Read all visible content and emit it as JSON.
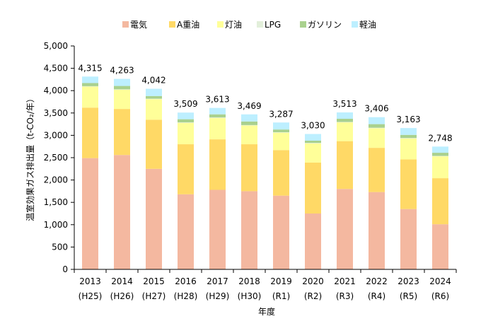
{
  "chart_data": {
    "type": "bar",
    "stacked": true,
    "title": "",
    "xlabel": "年度",
    "ylabel": "温室効果ガス排出量（t-CO₂/年）",
    "ylim": [
      0,
      5000
    ],
    "yticks": [
      0,
      500,
      1000,
      1500,
      2000,
      2500,
      3000,
      3500,
      4000,
      4500,
      5000
    ],
    "ytick_labels": [
      "0",
      "500",
      "1,000",
      "1,500",
      "2,000",
      "2,500",
      "3,000",
      "3,500",
      "4,000",
      "4,500",
      "5,000"
    ],
    "grid": false,
    "legend_position": "top",
    "categories": [
      "2013",
      "2014",
      "2015",
      "2016",
      "2017",
      "2018",
      "2019",
      "2020",
      "2021",
      "2022",
      "2023",
      "2024"
    ],
    "category_sublabels": [
      "(H25)",
      "(H26)",
      "(H27)",
      "(H28)",
      "(H29)",
      "(H30)",
      "(R1)",
      "(R2)",
      "(R3)",
      "(R4)",
      "(R5)",
      "(R6)"
    ],
    "totals": [
      4315,
      4263,
      4042,
      3509,
      3613,
      3469,
      3287,
      3030,
      3513,
      3406,
      3163,
      2748
    ],
    "total_labels": [
      "4,315",
      "4,263",
      "4,042",
      "3,509",
      "3,613",
      "3,469",
      "3,287",
      "3,030",
      "3,513",
      "3,406",
      "3,163",
      "2,748"
    ],
    "series": [
      {
        "name": "電気",
        "color": "#f4b8a0",
        "values": [
          2490,
          2560,
          2250,
          1680,
          1780,
          1750,
          1650,
          1250,
          1800,
          1730,
          1350,
          1010
        ]
      },
      {
        "name": "A重油",
        "color": "#ffd966",
        "values": [
          1130,
          1030,
          1100,
          1120,
          1130,
          1050,
          1020,
          1140,
          1070,
          990,
          1110,
          1030
        ]
      },
      {
        "name": "灯油",
        "color": "#ffff99",
        "values": [
          470,
          430,
          460,
          480,
          480,
          420,
          390,
          430,
          420,
          440,
          470,
          490
        ]
      },
      {
        "name": "LPG",
        "color": "#e2efda",
        "values": [
          10,
          10,
          10,
          10,
          10,
          10,
          10,
          10,
          10,
          10,
          10,
          10
        ]
      },
      {
        "name": "ガソリン",
        "color": "#a9d18e",
        "values": [
          70,
          75,
          60,
          70,
          70,
          80,
          60,
          50,
          70,
          80,
          70,
          70
        ]
      },
      {
        "name": "軽油",
        "color": "#bdefff",
        "values": [
          145,
          158,
          162,
          149,
          143,
          159,
          157,
          150,
          143,
          156,
          153,
          138
        ]
      }
    ]
  }
}
